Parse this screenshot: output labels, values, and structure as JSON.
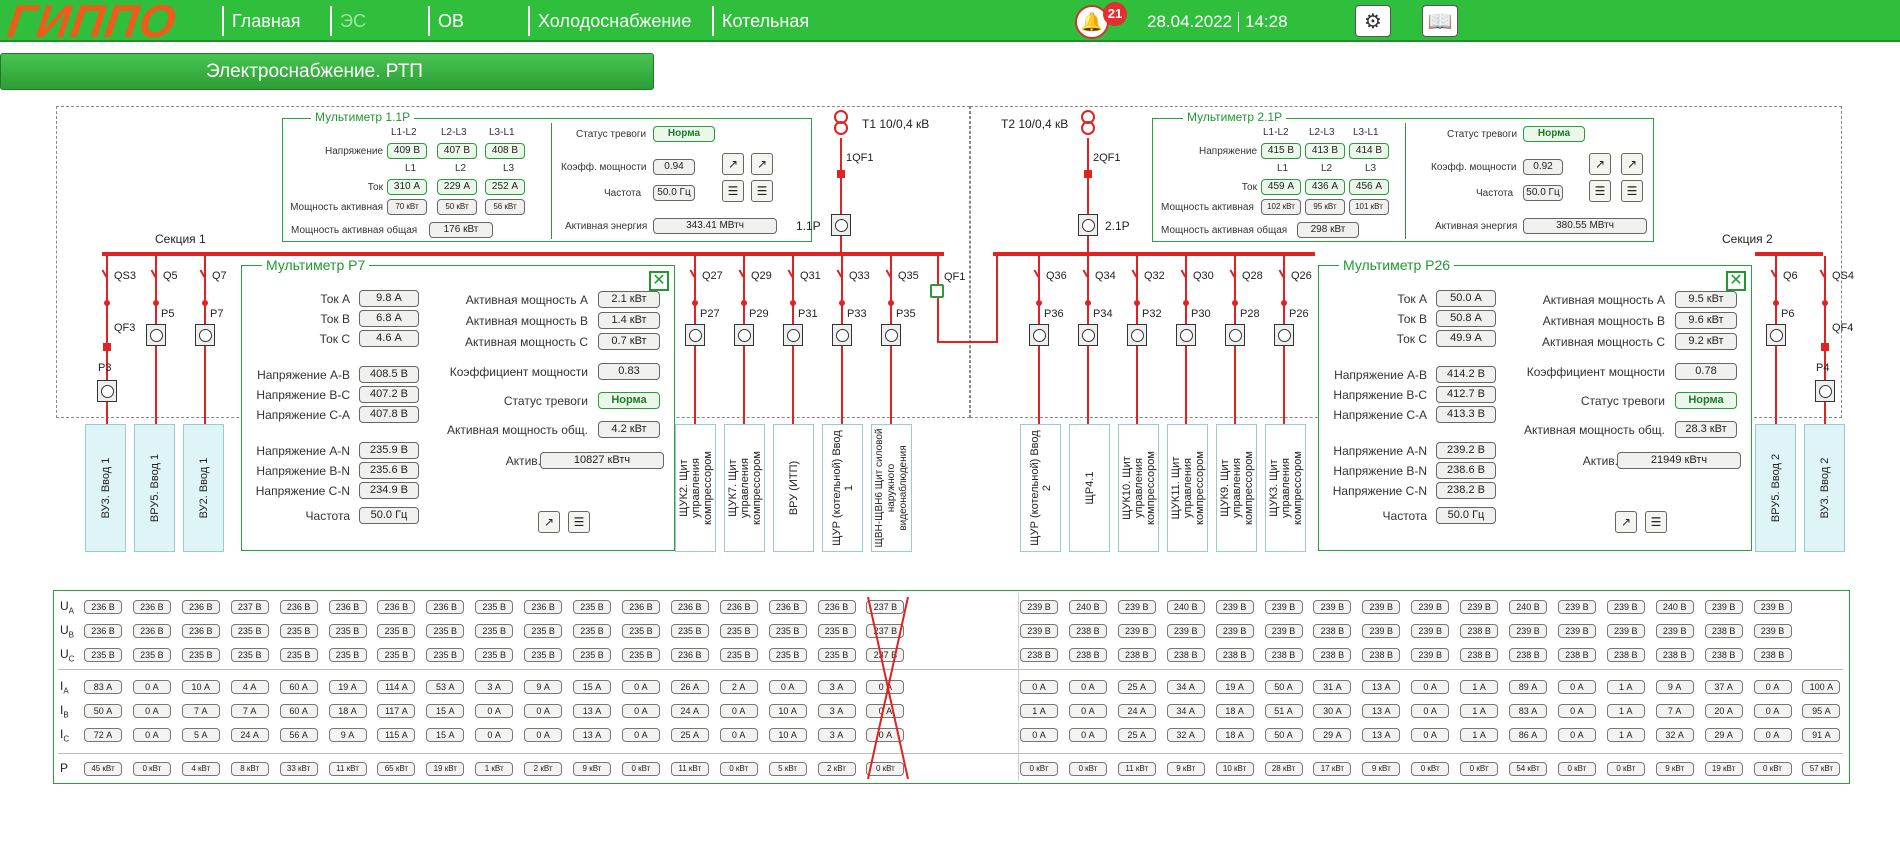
{
  "app": {
    "logo": "ГИППО",
    "subheader": "Электроснабжение. РТП"
  },
  "nav": [
    {
      "label": "Главная"
    },
    {
      "label": "ЭС"
    },
    {
      "label": "ОВ"
    },
    {
      "label": "Холодоснабжение"
    },
    {
      "label": "Котельная"
    }
  ],
  "header": {
    "alarm_count": "21",
    "date": "28.04.2022",
    "time": "14:28"
  },
  "mm11": {
    "title": "Мультиметр 1.1Р",
    "ph_line": [
      "L1-L2",
      "L2-L3",
      "L3-L1"
    ],
    "ph": [
      "L1",
      "L2",
      "L3"
    ],
    "labels": {
      "voltage": "Напряжение",
      "current": "Ток",
      "power": "Мощность активная",
      "power_total": "Мощность активная общая",
      "alarm": "Статус тревоги",
      "pf": "Коэфф. мощности",
      "freq": "Частота",
      "energy": "Активная энергия"
    },
    "voltage": [
      "409 В",
      "407 В",
      "408 В"
    ],
    "current": [
      "310 А",
      "229 А",
      "252 А"
    ],
    "power": [
      "70 кВт",
      "50 кВт",
      "56 кВт"
    ],
    "power_total": "176 кВт",
    "alarm": "Норма",
    "pf": "0.94",
    "freq": "50.0 Гц",
    "energy": "343.41 МВтч"
  },
  "mm21": {
    "title": "Мультиметр 2.1Р",
    "ph_line": [
      "L1-L2",
      "L2-L3",
      "L3-L1"
    ],
    "ph": [
      "L1",
      "L2",
      "L3"
    ],
    "labels": {
      "voltage": "Напряжение",
      "current": "Ток",
      "power": "Мощность активная",
      "power_total": "Мощность активная общая",
      "alarm": "Статус тревоги",
      "pf": "Коэфф. мощности",
      "freq": "Частота",
      "energy": "Активная энергия"
    },
    "voltage": [
      "415 В",
      "413 В",
      "414 В"
    ],
    "current": [
      "459 А",
      "436 А",
      "456 А"
    ],
    "power": [
      "102 кВт",
      "95 кВт",
      "101 кВт"
    ],
    "power_total": "298 кВт",
    "alarm": "Норма",
    "pf": "0.92",
    "freq": "50.0 Гц",
    "energy": "380.55 МВтч"
  },
  "schema": {
    "t1": "Т1 10/0,4 кВ",
    "t2": "Т2 10/0,4 кВ",
    "qf1_1": "1QF1",
    "qf2_1": "2QF1",
    "m11": "1.1Р",
    "m21": "2.1Р",
    "sec1": "Секция 1",
    "sec2": "Секция 2",
    "qf1": "QF1",
    "left_sw": [
      "QS3",
      "Q5",
      "Q7"
    ],
    "left_m": [
      "P3",
      "P5",
      "P7"
    ],
    "qf3": "QF3",
    "qf4": "QF4",
    "mid1_sw": [
      "Q27",
      "Q29",
      "Q31",
      "Q33",
      "Q35"
    ],
    "mid1_m": [
      "P27",
      "P29",
      "P31",
      "P33",
      "P35"
    ],
    "mid2_sw": [
      "Q36",
      "Q34",
      "Q32",
      "Q30",
      "Q28",
      "Q26"
    ],
    "mid2_m": [
      "P36",
      "P34",
      "P32",
      "P30",
      "P28",
      "P26"
    ],
    "right_sw": [
      "Q6",
      "QS4"
    ],
    "right_m": [
      "P6",
      "P4"
    ]
  },
  "feeders_left": [
    "ВУ3. Ввод 1",
    "ВРУ5. Ввод 1",
    "ВУ2. Ввод 1"
  ],
  "feeders_mid1": [
    "ЩУК2. Щит управления компрессором",
    "ЩУК7. Щит управления компрессором",
    "ВРУ (ИТП)",
    "ЩУР (котельной) Ввод 1",
    "ЩВН-ЩВН6 Щит силовой наружного видеонаблюдения"
  ],
  "feeders_mid2": [
    "ЩУР (котельной) Ввод 2",
    "ЩР4.1",
    "ЩУК10. Щит управления компрессором",
    "ЩУК11. Щит управления компрессором",
    "ЩУК9. Щит управления компрессором",
    "ЩУК3. Щит управления компрессором"
  ],
  "feeders_right": [
    "ВРУ5. Ввод 2",
    "ВУ3. Ввод 2"
  ],
  "p7": {
    "title": "Мультиметр Р7",
    "l": [
      "Ток А",
      "Ток В",
      "Ток С",
      "Напряжение А-В",
      "Напряжение В-С",
      "Напряжение С-А",
      "Напряжение А-N",
      "Напряжение В-N",
      "Напряжение С-N",
      "Частота"
    ],
    "v": [
      "9.8 А",
      "6.8 А",
      "4.6 А",
      "408.5 В",
      "407.2 В",
      "407.8 В",
      "235.9 В",
      "235.6 В",
      "234.9 В",
      "50.0 Гц"
    ],
    "rl": [
      "Активная мощность А",
      "Активная мощность В",
      "Активная мощность С",
      "Коэффициент мощности",
      "Статус тревоги",
      "Активная мощность общ.",
      "Актив. энергия"
    ],
    "rv": [
      "2.1 кВт",
      "1.4 кВт",
      "0.7 кВт",
      "0.83",
      "Норма",
      "4.2 кВт",
      "10827 кВтч"
    ]
  },
  "p26": {
    "title": "Мультиметр Р26",
    "l": [
      "Ток А",
      "Ток В",
      "Ток С",
      "Напряжение А-В",
      "Напряжение В-С",
      "Напряжение С-А",
      "Напряжение А-N",
      "Напряжение В-N",
      "Напряжение С-N",
      "Частота"
    ],
    "v": [
      "50.0 А",
      "50.8 А",
      "49.9 А",
      "414.2 В",
      "412.7 В",
      "413.3 В",
      "239.2 В",
      "238.6 В",
      "238.2 В",
      "50.0 Гц"
    ],
    "rl": [
      "Активная мощность А",
      "Активная мощность В",
      "Активная мощность С",
      "Коэффициент мощности",
      "Статус тревоги",
      "Активная мощность общ.",
      "Актив. энергия"
    ],
    "rv": [
      "9.5 кВт",
      "9.6 кВт",
      "9.2 кВт",
      "0.78",
      "Норма",
      "28.3 кВт",
      "21949 кВтч"
    ]
  },
  "table": {
    "rows": [
      "U",
      "U",
      "U",
      "I",
      "I",
      "I",
      "P"
    ],
    "subs": [
      "A",
      "B",
      "C",
      "A",
      "B",
      "C",
      ""
    ],
    "left": [
      [
        "236 В",
        "236 В",
        "236 В",
        "237 В",
        "236 В",
        "236 В",
        "236 В",
        "236 В",
        "235 В",
        "236 В",
        "235 В",
        "236 В",
        "236 В",
        "236 В",
        "236 В",
        "236 В",
        "237 В"
      ],
      [
        "236 В",
        "236 В",
        "236 В",
        "235 В",
        "235 В",
        "235 В",
        "235 В",
        "235 В",
        "235 В",
        "235 В",
        "235 В",
        "235 В",
        "235 В",
        "235 В",
        "235 В",
        "235 В",
        "237 В"
      ],
      [
        "235 В",
        "235 В",
        "235 В",
        "235 В",
        "235 В",
        "235 В",
        "235 В",
        "235 В",
        "235 В",
        "235 В",
        "235 В",
        "235 В",
        "236 В",
        "235 В",
        "235 В",
        "235 В",
        "237 В"
      ],
      [
        "83 А",
        "0 А",
        "10 А",
        "4 А",
        "60 А",
        "19 А",
        "114 А",
        "53 А",
        "3 А",
        "9 А",
        "15 А",
        "0 А",
        "26 А",
        "2 А",
        "0 А",
        "3 А",
        "0 А"
      ],
      [
        "50 А",
        "0 А",
        "7 А",
        "7 А",
        "60 А",
        "18 А",
        "117 А",
        "15 А",
        "0 А",
        "0 А",
        "13 А",
        "0 А",
        "24 А",
        "0 А",
        "10 А",
        "3 А",
        "0 А"
      ],
      [
        "72 А",
        "0 А",
        "5 А",
        "24 А",
        "56 А",
        "9 А",
        "115 А",
        "15 А",
        "0 А",
        "0 А",
        "13 А",
        "0 А",
        "25 А",
        "0 А",
        "10 А",
        "3 А",
        "0 А"
      ],
      [
        "45 кВт",
        "0 кВт",
        "4 кВт",
        "8 кВт",
        "33 кВт",
        "11 кВт",
        "65 кВт",
        "19 кВт",
        "1 кВт",
        "2 кВт",
        "9 кВт",
        "0 кВт",
        "11 кВт",
        "0 кВт",
        "5 кВт",
        "2 кВт",
        "0 кВт"
      ]
    ],
    "right": [
      [
        "239 В",
        "240 В",
        "239 В",
        "240 В",
        "239 В",
        "239 В",
        "239 В",
        "239 В",
        "239 В",
        "239 В",
        "240 В",
        "239 В",
        "239 В",
        "240 В",
        "239 В",
        "239 В"
      ],
      [
        "239 В",
        "238 В",
        "239 В",
        "239 В",
        "239 В",
        "239 В",
        "238 В",
        "239 В",
        "239 В",
        "238 В",
        "239 В",
        "239 В",
        "239 В",
        "239 В",
        "238 В",
        "239 В"
      ],
      [
        "238 В",
        "238 В",
        "238 В",
        "238 В",
        "238 В",
        "238 В",
        "238 В",
        "238 В",
        "239 В",
        "238 В",
        "238 В",
        "238 В",
        "238 В",
        "238 В",
        "238 В",
        "238 В"
      ],
      [
        "0 А",
        "0 А",
        "25 А",
        "34 А",
        "19 А",
        "50 А",
        "31 А",
        "13 А",
        "0 А",
        "1 А",
        "89 А",
        "0 А",
        "1 А",
        "9 А",
        "37 А",
        "0 А",
        "100 А"
      ],
      [
        "1 А",
        "0 А",
        "24 А",
        "34 А",
        "18 А",
        "51 А",
        "30 А",
        "13 А",
        "0 А",
        "1 А",
        "83 А",
        "0 А",
        "1 А",
        "7 А",
        "20 А",
        "0 А",
        "95 А"
      ],
      [
        "0 А",
        "0 А",
        "25 А",
        "32 А",
        "18 А",
        "50 А",
        "29 А",
        "13 А",
        "0 А",
        "1 А",
        "86 А",
        "0 А",
        "1 А",
        "32 А",
        "29 А",
        "0 А",
        "91 А"
      ],
      [
        "0 кВт",
        "0 кВт",
        "11 кВт",
        "9 кВт",
        "10 кВт",
        "28 кВт",
        "17 кВт",
        "9 кВт",
        "0 кВт",
        "0 кВт",
        "54 кВт",
        "0 кВт",
        "0 кВт",
        "9 кВт",
        "19 кВт",
        "0 кВт",
        "57 кВт"
      ]
    ]
  },
  "colors": {
    "accent": "#2fbf3c",
    "bus": "#e02222",
    "logo": "#f05a1a"
  },
  "icons": [
    "bell-icon",
    "settings-monitor-icon",
    "book-icon",
    "chart-icon",
    "list-icon",
    "close-icon",
    "meter-icon"
  ]
}
